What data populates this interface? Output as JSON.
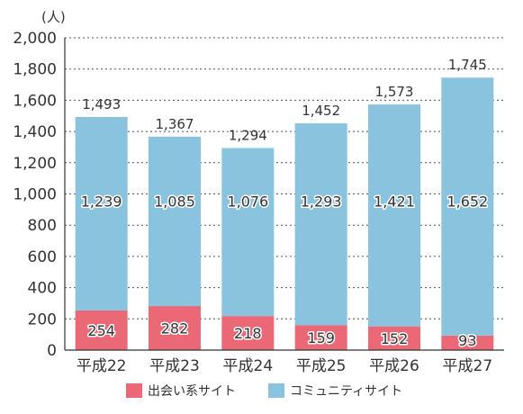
{
  "chart_data": {
    "type": "bar",
    "stacked": true,
    "unit": "(人)",
    "categories": [
      "平成22",
      "平成23",
      "平成24",
      "平成25",
      "平成26",
      "平成27"
    ],
    "series": [
      {
        "name": "出会い系サイト",
        "values": [
          254,
          282,
          218,
          159,
          152,
          93
        ],
        "color": "#eb6877"
      },
      {
        "name": "コミュニティサイト",
        "values": [
          1239,
          1085,
          1076,
          1293,
          1421,
          1652
        ],
        "color": "#89c3dd"
      }
    ],
    "totals": [
      1493,
      1367,
      1294,
      1452,
      1573,
      1745
    ],
    "ylim": [
      0,
      2000
    ],
    "yticks": [
      0,
      200,
      400,
      600,
      800,
      1000,
      1200,
      1400,
      1600,
      1800,
      2000
    ],
    "grid": true,
    "legend_position": "bottom"
  }
}
